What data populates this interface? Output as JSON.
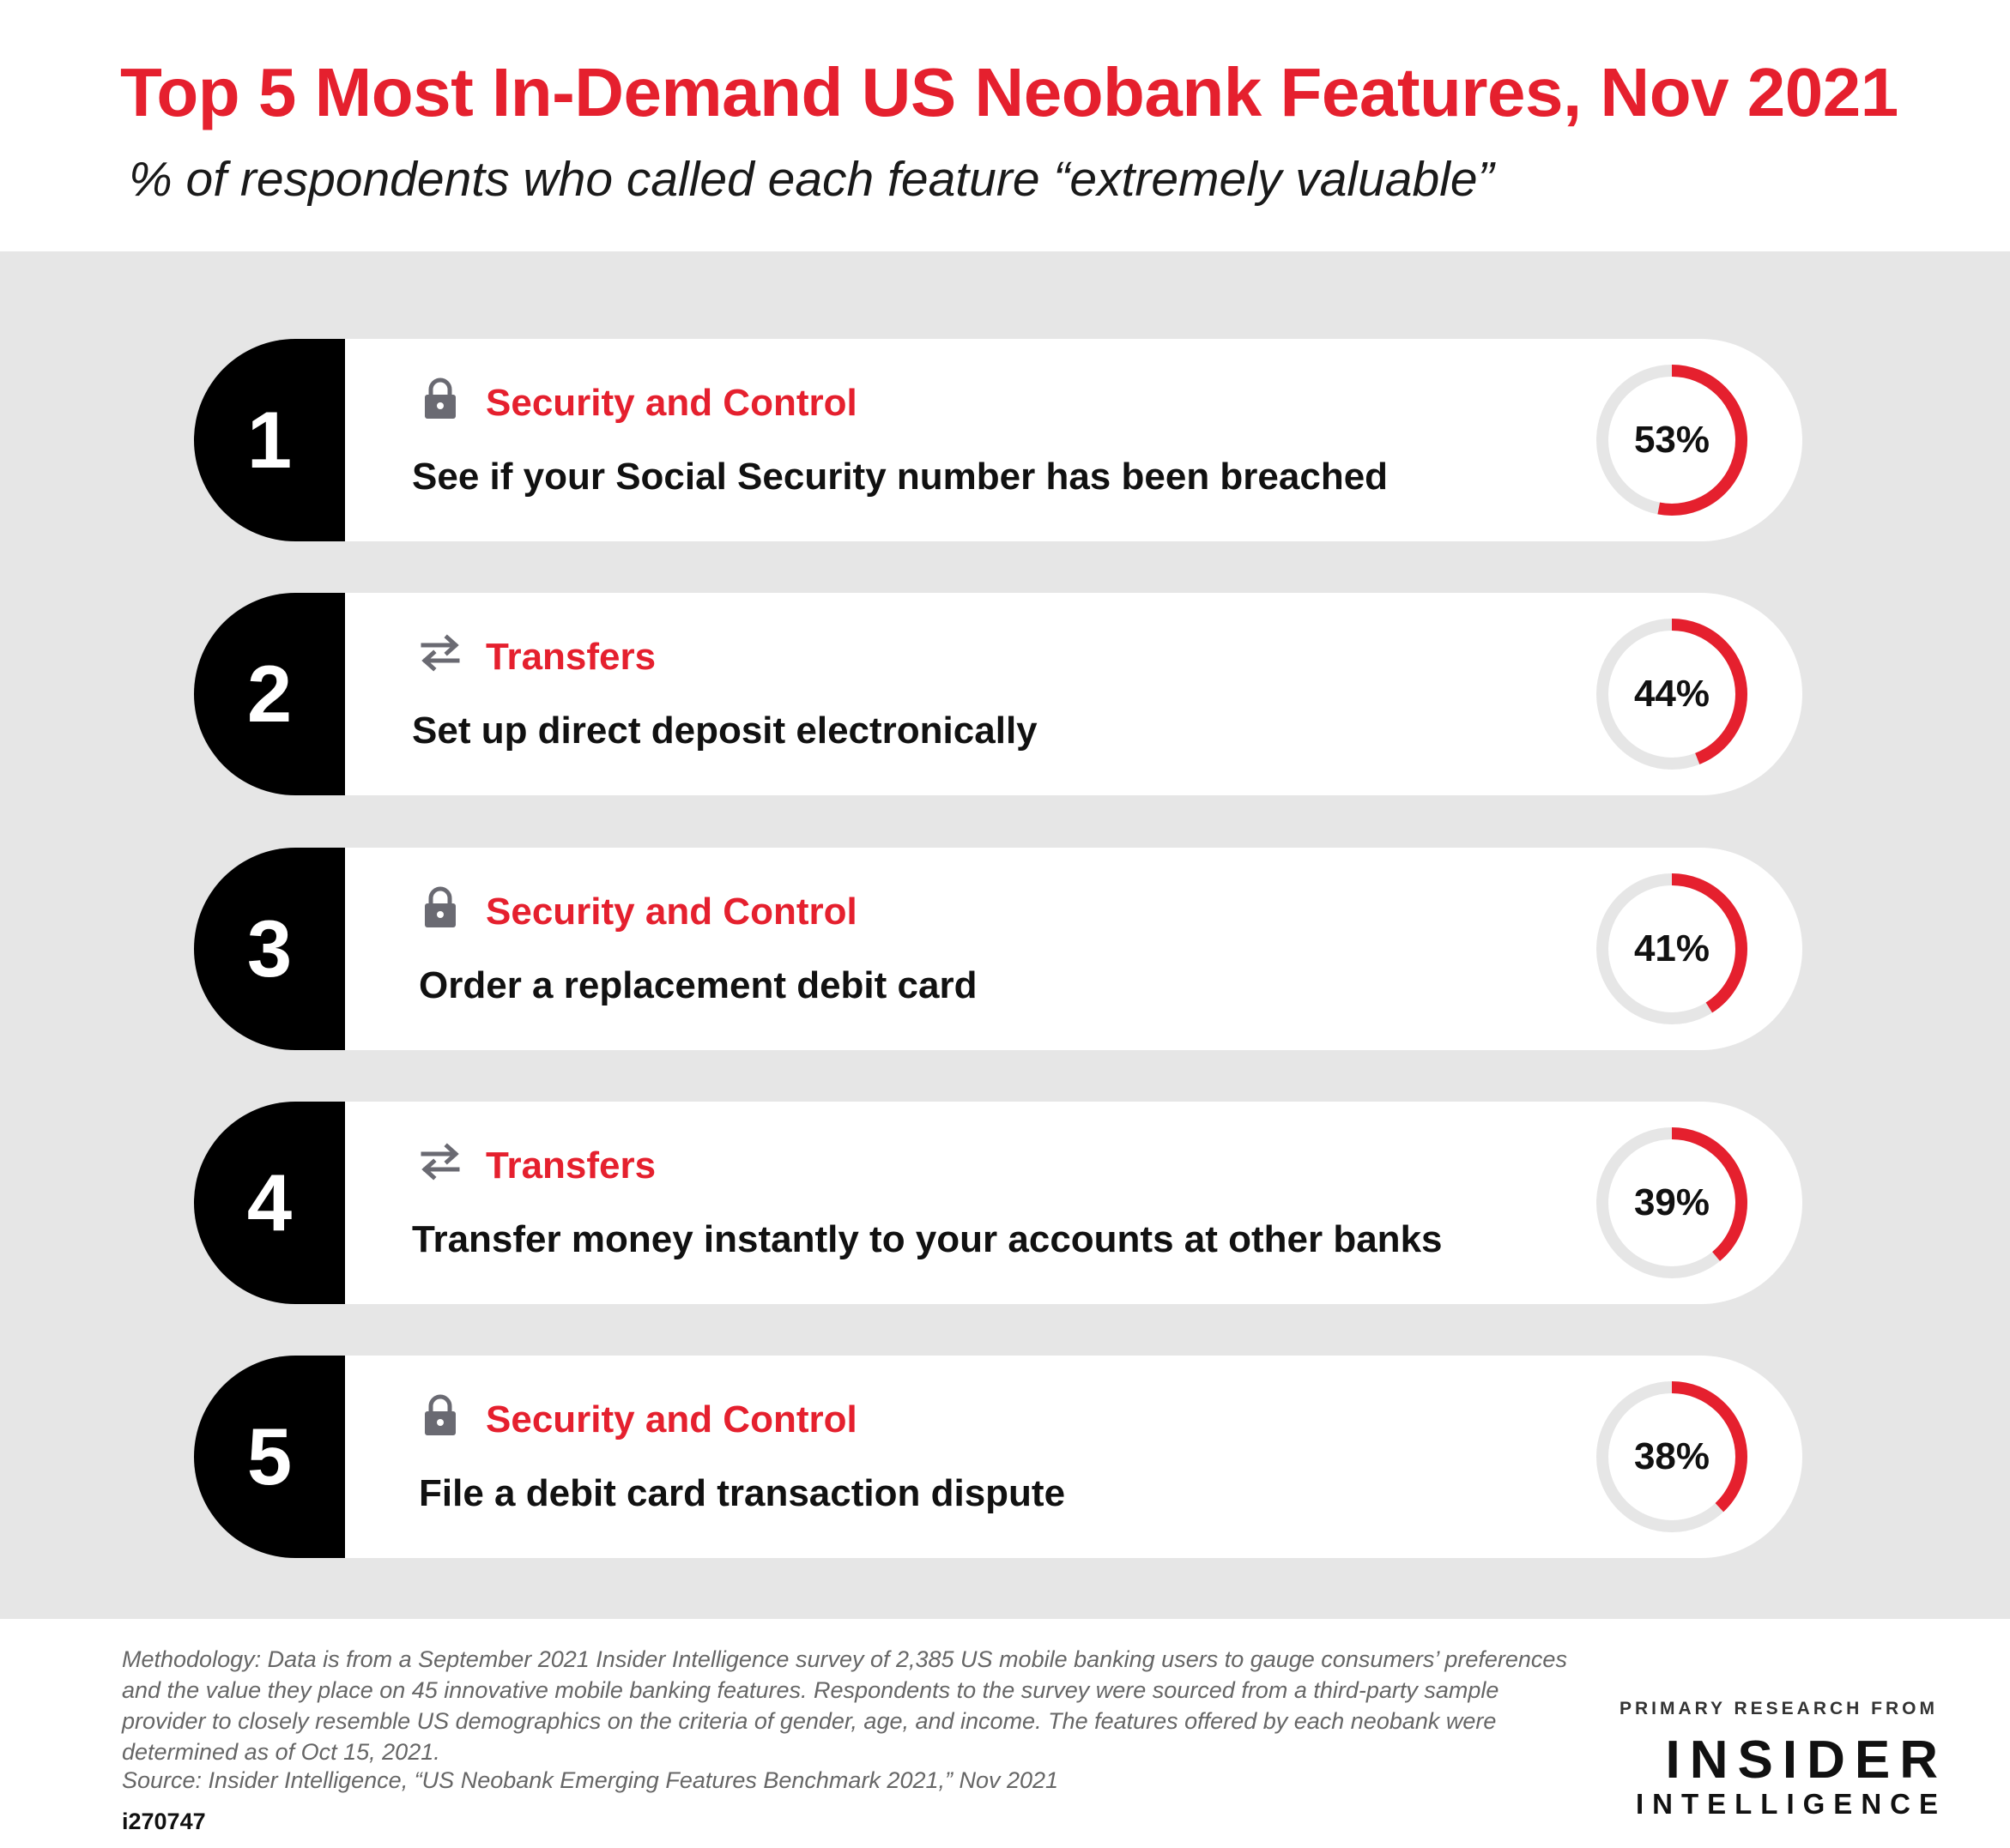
{
  "header": {
    "title": "Top 5 Most In-Demand US Neobank Features, Nov 2021",
    "subtitle": "% of respondents who called each feature “extremely valuable”"
  },
  "colors": {
    "accent": "#e5202e",
    "ring_track": "#e6e6e6",
    "rank_badge": "#000000",
    "panel_background": "#e6e6e6"
  },
  "chart_data": {
    "type": "bar",
    "title": "Top 5 Most In-Demand US Neobank Features, Nov 2021",
    "subtitle": "% of respondents who called each feature “extremely valuable”",
    "categories": [
      "See if your Social Security number has been breached",
      "Set up direct deposit electronically",
      "Order a replacement debit card",
      "Transfer money instantly to your accounts at other banks",
      "File a debit card transaction dispute"
    ],
    "values": [
      53,
      44,
      41,
      39,
      38
    ],
    "ylim": [
      0,
      100
    ],
    "items": [
      {
        "rank": "1",
        "icon": "lock-icon",
        "category": "Security and Control",
        "feature": "See if your Social Security number has been breached",
        "value": 53,
        "label": "53%"
      },
      {
        "rank": "2",
        "icon": "transfer-arrows-icon",
        "category": "Transfers",
        "feature": "Set up direct deposit electronically",
        "value": 44,
        "label": "44%"
      },
      {
        "rank": "3",
        "icon": "lock-icon",
        "category": "Security and Control",
        "feature": "Order a replacement debit card",
        "value": 41,
        "label": "41%"
      },
      {
        "rank": "4",
        "icon": "transfer-arrows-icon",
        "category": "Transfers",
        "feature": "Transfer money instantly to your accounts at other banks",
        "value": 39,
        "label": "39%"
      },
      {
        "rank": "5",
        "icon": "lock-icon",
        "category": "Security and Control",
        "feature": "File a debit card transaction dispute",
        "value": 38,
        "label": "38%"
      }
    ]
  },
  "footer": {
    "methodology": "Methodology: Data is from a September 2021 Insider Intelligence survey of 2,385 US mobile banking users to gauge consumers’ preferences and the value they place on 45 innovative mobile banking features. Respondents to the survey were sourced from a third-party sample provider to closely resemble US demographics on the criteria of gender, age, and income. The features offered by each neobank were determined as of Oct 15, 2021.",
    "source": "Source: Insider Intelligence, “US Neobank Emerging Features Benchmark 2021,”  Nov 2021",
    "chart_id": "i270747",
    "brand_top": "PRIMARY RESEARCH FROM",
    "brand_main": "INSIDER",
    "brand_sub": "INTELLIGENCE"
  }
}
